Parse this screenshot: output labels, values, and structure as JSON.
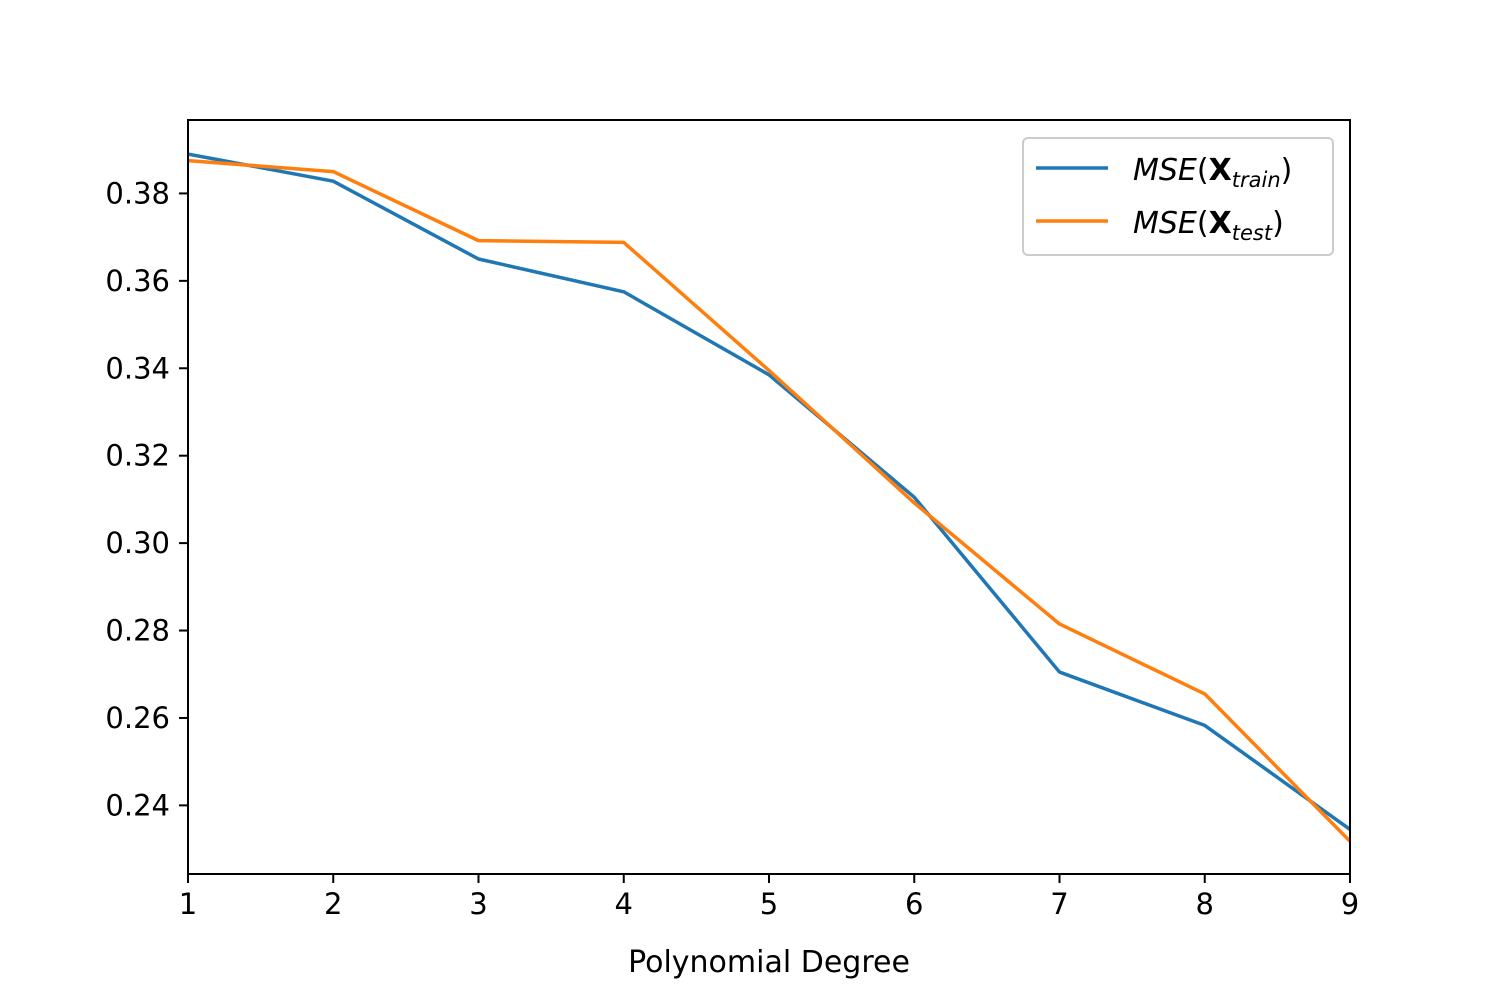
{
  "chart_data": {
    "type": "line",
    "title": "",
    "xlabel": "Polynomial Degree",
    "ylabel": "",
    "x": [
      1,
      2,
      3,
      4,
      5,
      6,
      7,
      8,
      9
    ],
    "xlim": [
      1,
      9
    ],
    "ylim": [
      0.2243,
      0.3968
    ],
    "xticks": [
      1,
      2,
      3,
      4,
      5,
      6,
      7,
      8,
      9
    ],
    "yticks": [
      0.24,
      0.26,
      0.28,
      0.3,
      0.32,
      0.34,
      0.36,
      0.38
    ],
    "grid": false,
    "legend_position": "top-right",
    "series": [
      {
        "name": "MSE(X_train)",
        "label_parts": {
          "main": "MSE(",
          "bold": "X",
          "sub": "train",
          "close": ")"
        },
        "color": "#1f77b4",
        "values": [
          0.389,
          0.3828,
          0.365,
          0.3575,
          0.3385,
          0.3105,
          0.2705,
          0.2583,
          0.2345
        ]
      },
      {
        "name": "MSE(X_test)",
        "label_parts": {
          "main": "MSE(",
          "bold": "X",
          "sub": "test",
          "close": ")"
        },
        "color": "#ff7f0e",
        "values": [
          0.3875,
          0.385,
          0.3692,
          0.3688,
          0.3395,
          0.3092,
          0.2815,
          0.2655,
          0.2318
        ]
      }
    ]
  }
}
